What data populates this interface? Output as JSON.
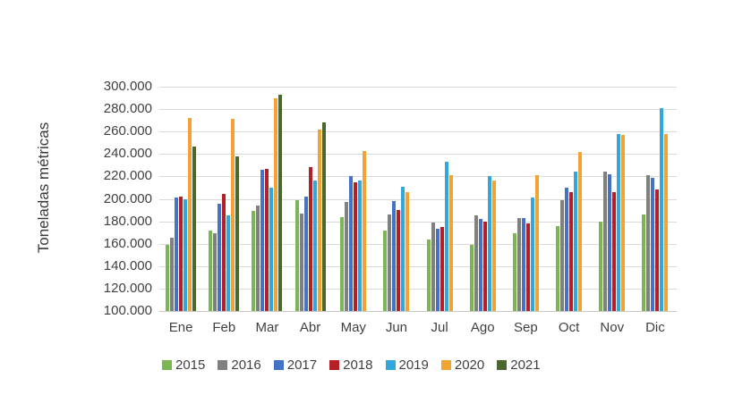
{
  "chart_data": {
    "type": "bar",
    "title": "",
    "xlabel": "",
    "ylabel": "Toneladas métricas",
    "ylim": [
      100000,
      300000
    ],
    "ytick_step": 20000,
    "ytick_labels": [
      "300.000",
      "280.000",
      "260.000",
      "240.000",
      "220.000",
      "200.000",
      "180.000",
      "160.000",
      "140.000",
      "120.000",
      "100.000"
    ],
    "categories": [
      "Ene",
      "Feb",
      "Mar",
      "Abr",
      "May",
      "Jun",
      "Jul",
      "Ago",
      "Sep",
      "Oct",
      "Nov",
      "Dic"
    ],
    "grid": true,
    "legend_position": "bottom",
    "series": [
      {
        "name": "2015",
        "color": "#79b752",
        "values": [
          159000,
          172000,
          189000,
          199000,
          184000,
          172000,
          164000,
          159000,
          169000,
          176000,
          180000,
          186000
        ]
      },
      {
        "name": "2016",
        "color": "#808080",
        "values": [
          165000,
          169000,
          194000,
          187000,
          197000,
          186000,
          179000,
          185000,
          183000,
          199000,
          224000,
          221000
        ]
      },
      {
        "name": "2017",
        "color": "#4472c4",
        "values": [
          201000,
          196000,
          226000,
          202000,
          220000,
          198000,
          173000,
          182000,
          183000,
          210000,
          222000,
          219000
        ]
      },
      {
        "name": "2018",
        "color": "#b42025",
        "values": [
          202000,
          204000,
          227000,
          228000,
          215000,
          190000,
          175000,
          180000,
          178000,
          206000,
          206000,
          208000
        ]
      },
      {
        "name": "2019",
        "color": "#30a8dc",
        "values": [
          200000,
          185000,
          210000,
          216000,
          216000,
          211000,
          233000,
          220000,
          201000,
          224000,
          258000,
          281000
        ]
      },
      {
        "name": "2020",
        "color": "#f2a432",
        "values": [
          272000,
          271000,
          290000,
          262000,
          243000,
          206000,
          221000,
          216000,
          221000,
          242000,
          257000,
          258000
        ]
      },
      {
        "name": "2021",
        "color": "#4a672e",
        "values": [
          247000,
          238000,
          293000,
          268000,
          null,
          null,
          null,
          null,
          null,
          null,
          null,
          null
        ]
      }
    ]
  }
}
